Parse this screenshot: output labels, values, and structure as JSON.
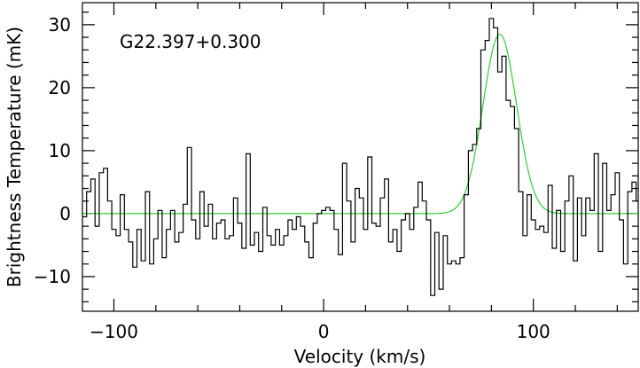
{
  "chart_data": {
    "type": "line",
    "source_label": "G22.397+0.300",
    "xlabel": "Velocity (km/s)",
    "ylabel": "Brightness Temperature (mK)",
    "xlim": [
      -115,
      150
    ],
    "ylim": [
      -15.5,
      33.5
    ],
    "x_ticks": [
      -100,
      0,
      100
    ],
    "x_tick_labels": [
      "−100",
      "0",
      "100"
    ],
    "y_ticks": [
      -10,
      0,
      10,
      20,
      30
    ],
    "y_tick_labels": [
      "−10",
      "0",
      "10",
      "20",
      "30"
    ],
    "grid": false,
    "series": [
      {
        "style": "histogram",
        "color": "#000000",
        "x": [
          -115,
          -113,
          -111,
          -109,
          -107,
          -105,
          -103,
          -101,
          -99,
          -97,
          -95,
          -93,
          -91,
          -89,
          -87,
          -85,
          -83,
          -81,
          -79,
          -77,
          -75,
          -73,
          -71,
          -69,
          -67,
          -65,
          -63,
          -61,
          -59,
          -57,
          -55,
          -53,
          -51,
          -49,
          -47,
          -45,
          -43,
          -41,
          -39,
          -37,
          -35,
          -33,
          -31,
          -29,
          -27,
          -25,
          -23,
          -21,
          -19,
          -17,
          -15,
          -13,
          -11,
          -9,
          -7,
          -5,
          -3,
          -1,
          1,
          3,
          5,
          7,
          9,
          11,
          13,
          15,
          17,
          19,
          21,
          23,
          25,
          27,
          29,
          31,
          33,
          35,
          37,
          39,
          41,
          43,
          45,
          47,
          49,
          51,
          53,
          55,
          57,
          59,
          61,
          63,
          65,
          67,
          69,
          71,
          73,
          75,
          77,
          79,
          81,
          83,
          85,
          87,
          89,
          91,
          93,
          95,
          97,
          99,
          101,
          103,
          105,
          107,
          109,
          111,
          113,
          115,
          117,
          119,
          121,
          123,
          125,
          127,
          129,
          131,
          133,
          135,
          137,
          139,
          141,
          143,
          145,
          147,
          149
        ],
        "y": [
          -0.5,
          3.5,
          5.5,
          -2,
          6.5,
          7.2,
          2,
          -2.5,
          -3.5,
          3,
          -2.5,
          -4.5,
          -8.5,
          -2.5,
          -7.5,
          3.5,
          -8,
          -4,
          0.5,
          -7,
          -2.5,
          0.5,
          -4.5,
          -3,
          1.5,
          10.5,
          -1,
          -4,
          3.5,
          -2,
          1.5,
          -4,
          -1.5,
          -1,
          -4,
          -3.5,
          2.5,
          -1.5,
          -5.5,
          9.5,
          -5,
          -3,
          -6,
          1,
          -3.5,
          -5,
          -2.5,
          -5,
          -3.5,
          -1,
          -2.5,
          -0.5,
          -2,
          -4.5,
          -7,
          -1.5,
          0,
          0.5,
          1,
          0.5,
          -2.5,
          -6.5,
          8,
          2,
          -4.5,
          4,
          2.5,
          -2.5,
          9,
          -1.5,
          -2,
          2.5,
          5.5,
          -4.5,
          -2.5,
          -6,
          -1,
          0,
          -2.5,
          1,
          5,
          2,
          -1,
          -13,
          -3,
          -12,
          -3.5,
          -8,
          -7.5,
          -8,
          -7,
          3,
          10,
          11,
          13.5,
          26,
          27.5,
          31,
          29.5,
          22.5,
          25,
          18,
          17,
          13.5,
          3.5,
          -3.5,
          3,
          -1,
          -2.5,
          -2,
          -3,
          4.5,
          -5.5,
          0.5,
          -6,
          2,
          6,
          -7.5,
          2.5,
          -3.5,
          2.5,
          0.5,
          9.5,
          -6,
          8,
          0.5,
          3,
          6.5,
          -1,
          -8,
          3.5,
          5,
          2
        ]
      },
      {
        "style": "gaussian-fit",
        "color": "#33cc33",
        "center": 84,
        "amplitude": 28.5,
        "sigma": 8,
        "offset": 0
      }
    ]
  }
}
